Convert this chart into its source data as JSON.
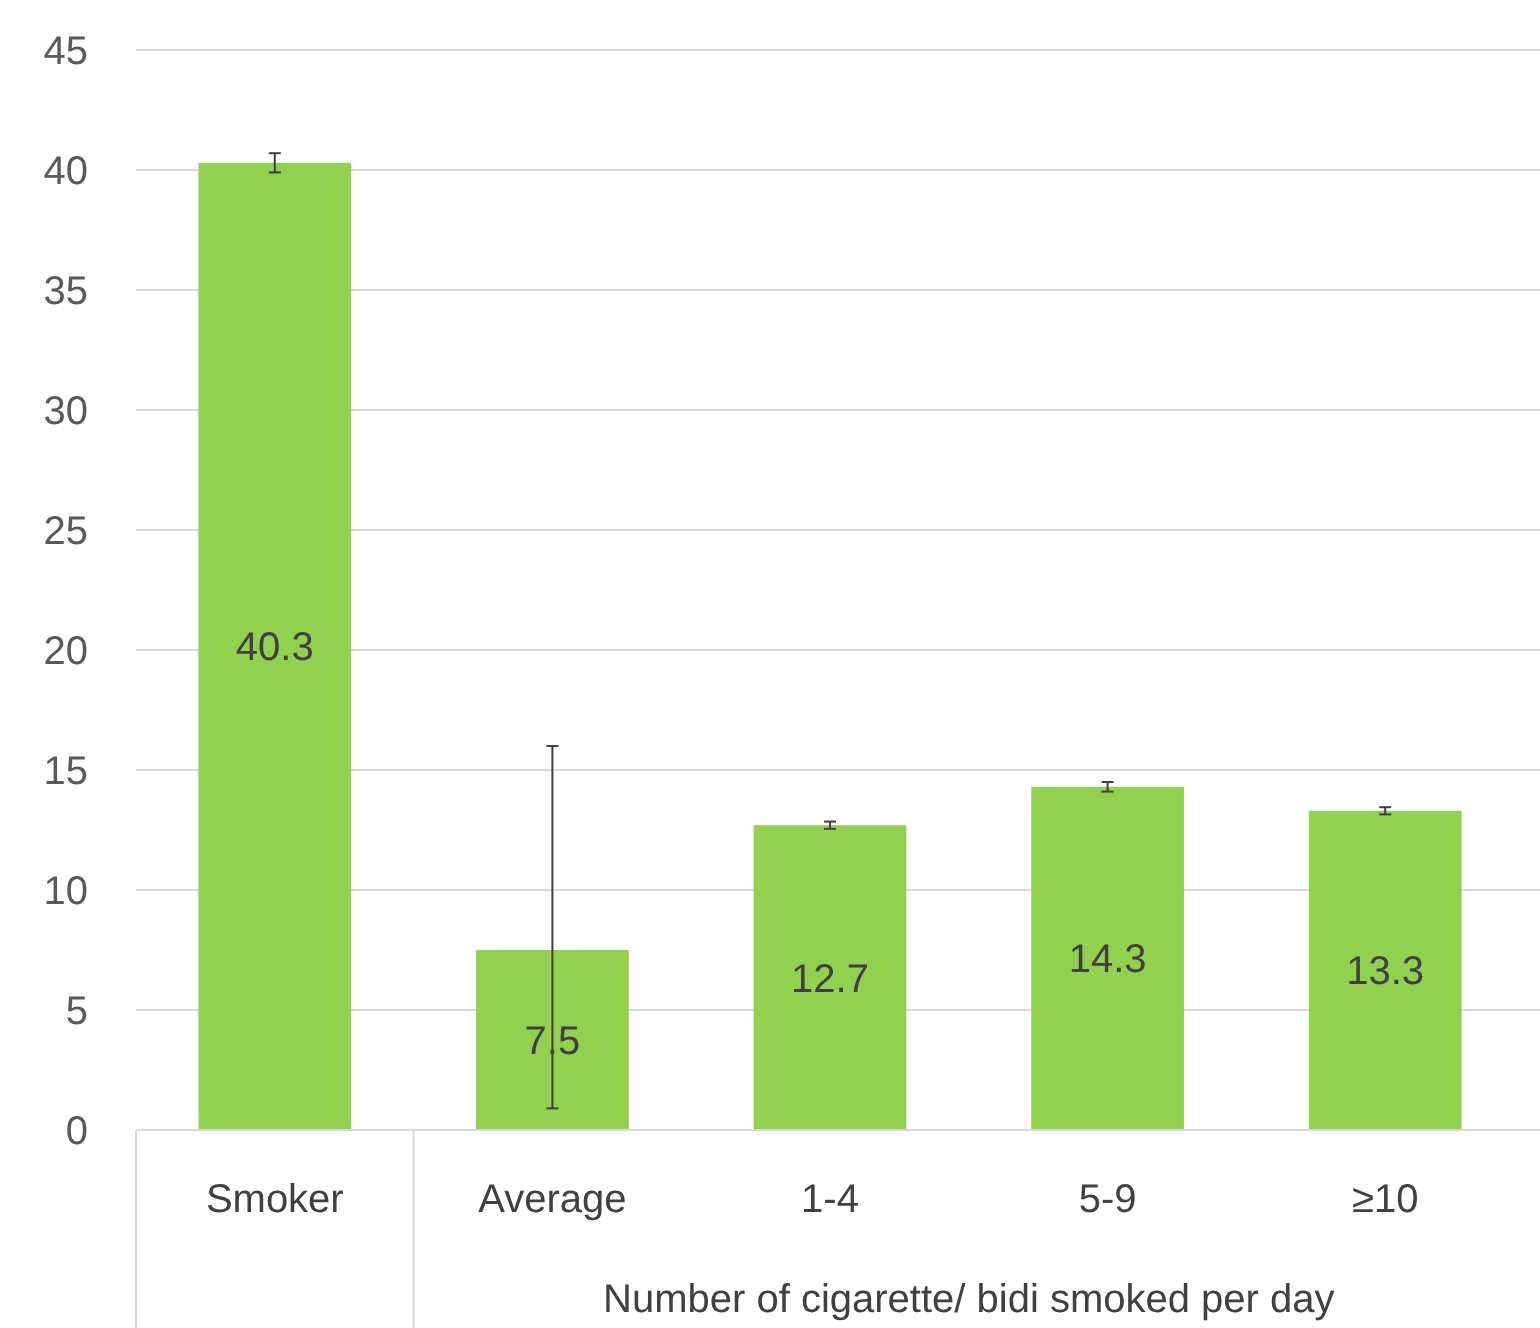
{
  "chart_data": {
    "type": "bar",
    "categories": [
      "Smoker",
      "Average",
      "1-4",
      "5-9",
      "≥10"
    ],
    "values": [
      40.3,
      7.5,
      12.7,
      14.3,
      13.3
    ],
    "color": "#92d050",
    "errors": [
      0.4,
      [
        0.9,
        16.0
      ],
      0.15,
      0.2,
      0.15
    ],
    "xlabel": "Number of cigarette/ bidi smoked per day",
    "ylim": [
      0,
      45
    ],
    "yticks": [
      0,
      5,
      10,
      15,
      20,
      25,
      30,
      35,
      40,
      45
    ],
    "grid": "y",
    "data_labels": true
  }
}
